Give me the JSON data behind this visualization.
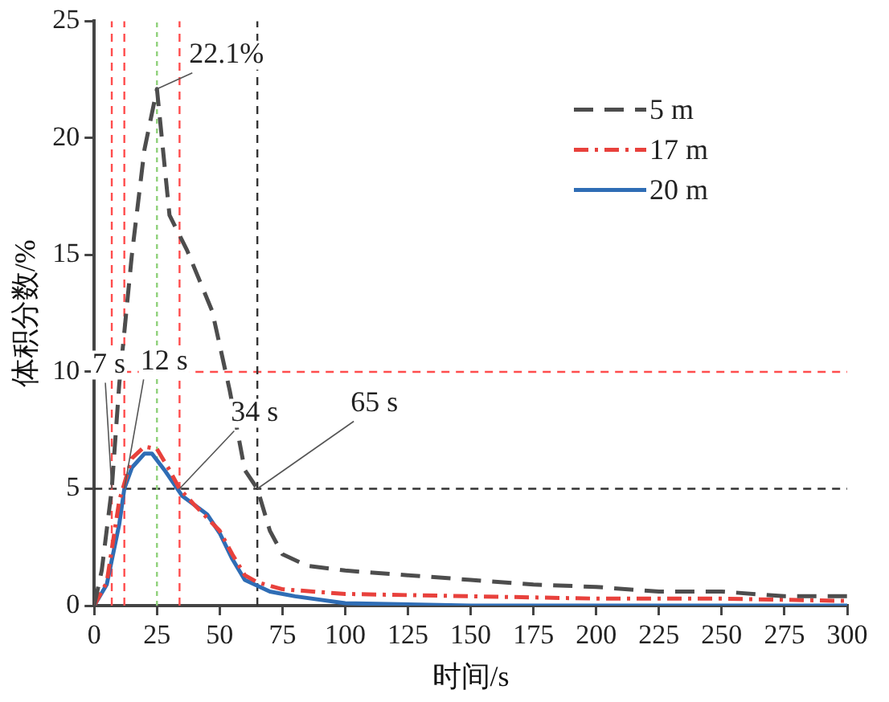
{
  "chart_data": {
    "type": "line",
    "xlabel": "时间/s",
    "ylabel": "体积分数/%",
    "xlim": [
      0,
      300
    ],
    "xticks": [
      0,
      25,
      50,
      75,
      100,
      125,
      150,
      175,
      200,
      225,
      250,
      275,
      300
    ],
    "ylim": [
      0,
      25
    ],
    "yticks": [
      0,
      5,
      10,
      15,
      20,
      25
    ],
    "grid": false,
    "legend": "top right",
    "marker": "none",
    "series": [
      {
        "name": "5 m",
        "color": "#4d4d4d",
        "line_style": "dashed",
        "x": [
          0,
          3,
          7,
          10,
          15,
          20,
          25,
          30,
          37,
          47,
          54,
          60,
          65,
          70,
          75,
          85,
          100,
          125,
          150,
          175,
          200,
          225,
          250,
          275,
          300
        ],
        "values": [
          0,
          1.5,
          5,
          9.5,
          15,
          19.5,
          22.1,
          16.7,
          15.2,
          12.6,
          9.2,
          5.8,
          5,
          3.2,
          2.2,
          1.7,
          1.5,
          1.3,
          1.1,
          0.9,
          0.8,
          0.6,
          0.6,
          0.4,
          0.4
        ]
      },
      {
        "name": "17 m",
        "color": "#e8413c",
        "line_style": "dotted",
        "x": [
          0,
          5,
          10,
          15,
          20,
          25,
          30,
          34,
          40,
          50,
          55,
          60,
          65,
          75,
          100,
          150,
          200,
          250,
          300
        ],
        "values": [
          0,
          1,
          4.5,
          6.3,
          6.8,
          6.7,
          5.8,
          5,
          4.3,
          3.2,
          2.2,
          1.3,
          1,
          0.7,
          0.5,
          0.4,
          0.3,
          0.3,
          0.2
        ]
      },
      {
        "name": "20 m",
        "color": "#2f6db5",
        "line_style": "solid",
        "x": [
          0,
          5,
          10,
          12,
          15,
          20,
          23,
          28,
          35,
          45,
          50,
          55,
          60,
          70,
          80,
          100,
          150,
          200,
          250,
          300
        ],
        "values": [
          0,
          0.9,
          3.5,
          5,
          5.9,
          6.5,
          6.5,
          5.8,
          4.7,
          3.9,
          3.1,
          2,
          1.1,
          0.6,
          0.4,
          0.1,
          0,
          0,
          0,
          0
        ]
      }
    ],
    "ref_lines": [
      {
        "axis": "y",
        "value": 10,
        "color": "#ff4d4d",
        "line_style": "dashed"
      },
      {
        "axis": "y",
        "value": 5,
        "color": "#333333",
        "line_style": "dashed"
      },
      {
        "axis": "x",
        "value": 7,
        "color": "#ff4d4d",
        "line_style": "dashed"
      },
      {
        "axis": "x",
        "value": 12,
        "color": "#ff4d4d",
        "line_style": "dashed"
      },
      {
        "axis": "x",
        "value": 34,
        "color": "#ff4d4d",
        "line_style": "dashed"
      },
      {
        "axis": "x",
        "value": 65,
        "color": "#333333",
        "line_style": "dashed"
      },
      {
        "axis": "x",
        "value": 25,
        "color": "#8fd17a",
        "line_style": "dotted"
      }
    ],
    "annotations": [
      {
        "text": "22.1%",
        "x": 25,
        "y": 22.1
      },
      {
        "text": "7 s",
        "x": 7,
        "y": 5
      },
      {
        "text": "12 s",
        "x": 12,
        "y": 5
      },
      {
        "text": "34 s",
        "x": 34,
        "y": 5
      },
      {
        "text": "65 s",
        "x": 65,
        "y": 5
      }
    ]
  }
}
